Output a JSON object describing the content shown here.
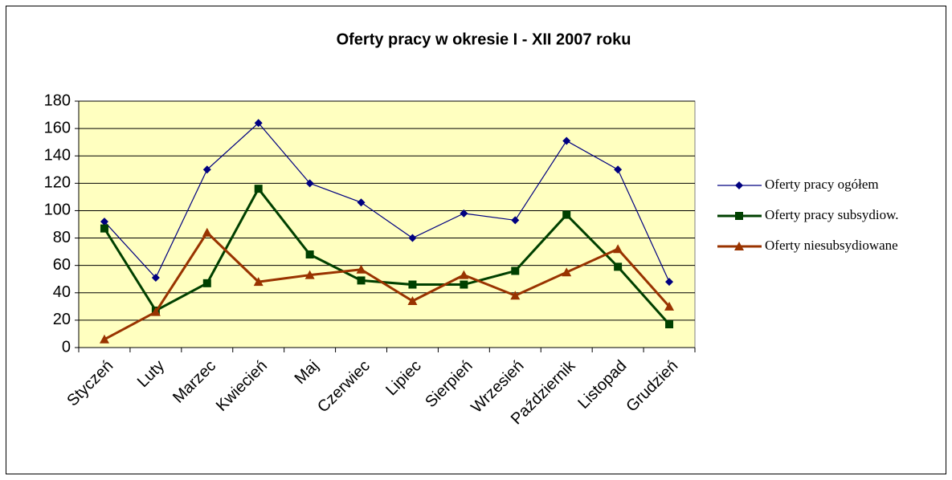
{
  "chart_data": {
    "type": "line",
    "title": "Oferty pracy w okresie I - XII  2007 roku",
    "categories": [
      "Styczeń",
      "Luty",
      "Marzec",
      "Kwiecień",
      "Maj",
      "Czerwiec",
      "Lipiec",
      "Sierpień",
      "Wrzesień",
      "Październik",
      "Listopad",
      "Grudzień"
    ],
    "series": [
      {
        "name": "Oferty pracy ogółem",
        "color": "#000080",
        "marker": "diamond",
        "values": [
          92,
          51,
          130,
          164,
          120,
          106,
          80,
          98,
          93,
          151,
          130,
          48
        ]
      },
      {
        "name": "Oferty pracy subsydiow.",
        "color": "#004000",
        "marker": "square",
        "values": [
          87,
          27,
          47,
          116,
          68,
          49,
          46,
          46,
          56,
          97,
          59,
          17
        ]
      },
      {
        "name": "Oferty niesubsydiowane",
        "color": "#993300",
        "marker": "triangle",
        "values": [
          6,
          26,
          84,
          48,
          53,
          57,
          34,
          53,
          38,
          55,
          72,
          30
        ]
      }
    ],
    "ylim": [
      0,
      180
    ],
    "yticks": [
      0,
      20,
      40,
      60,
      80,
      100,
      120,
      140,
      160,
      180
    ],
    "grid": true,
    "legend": "right"
  }
}
